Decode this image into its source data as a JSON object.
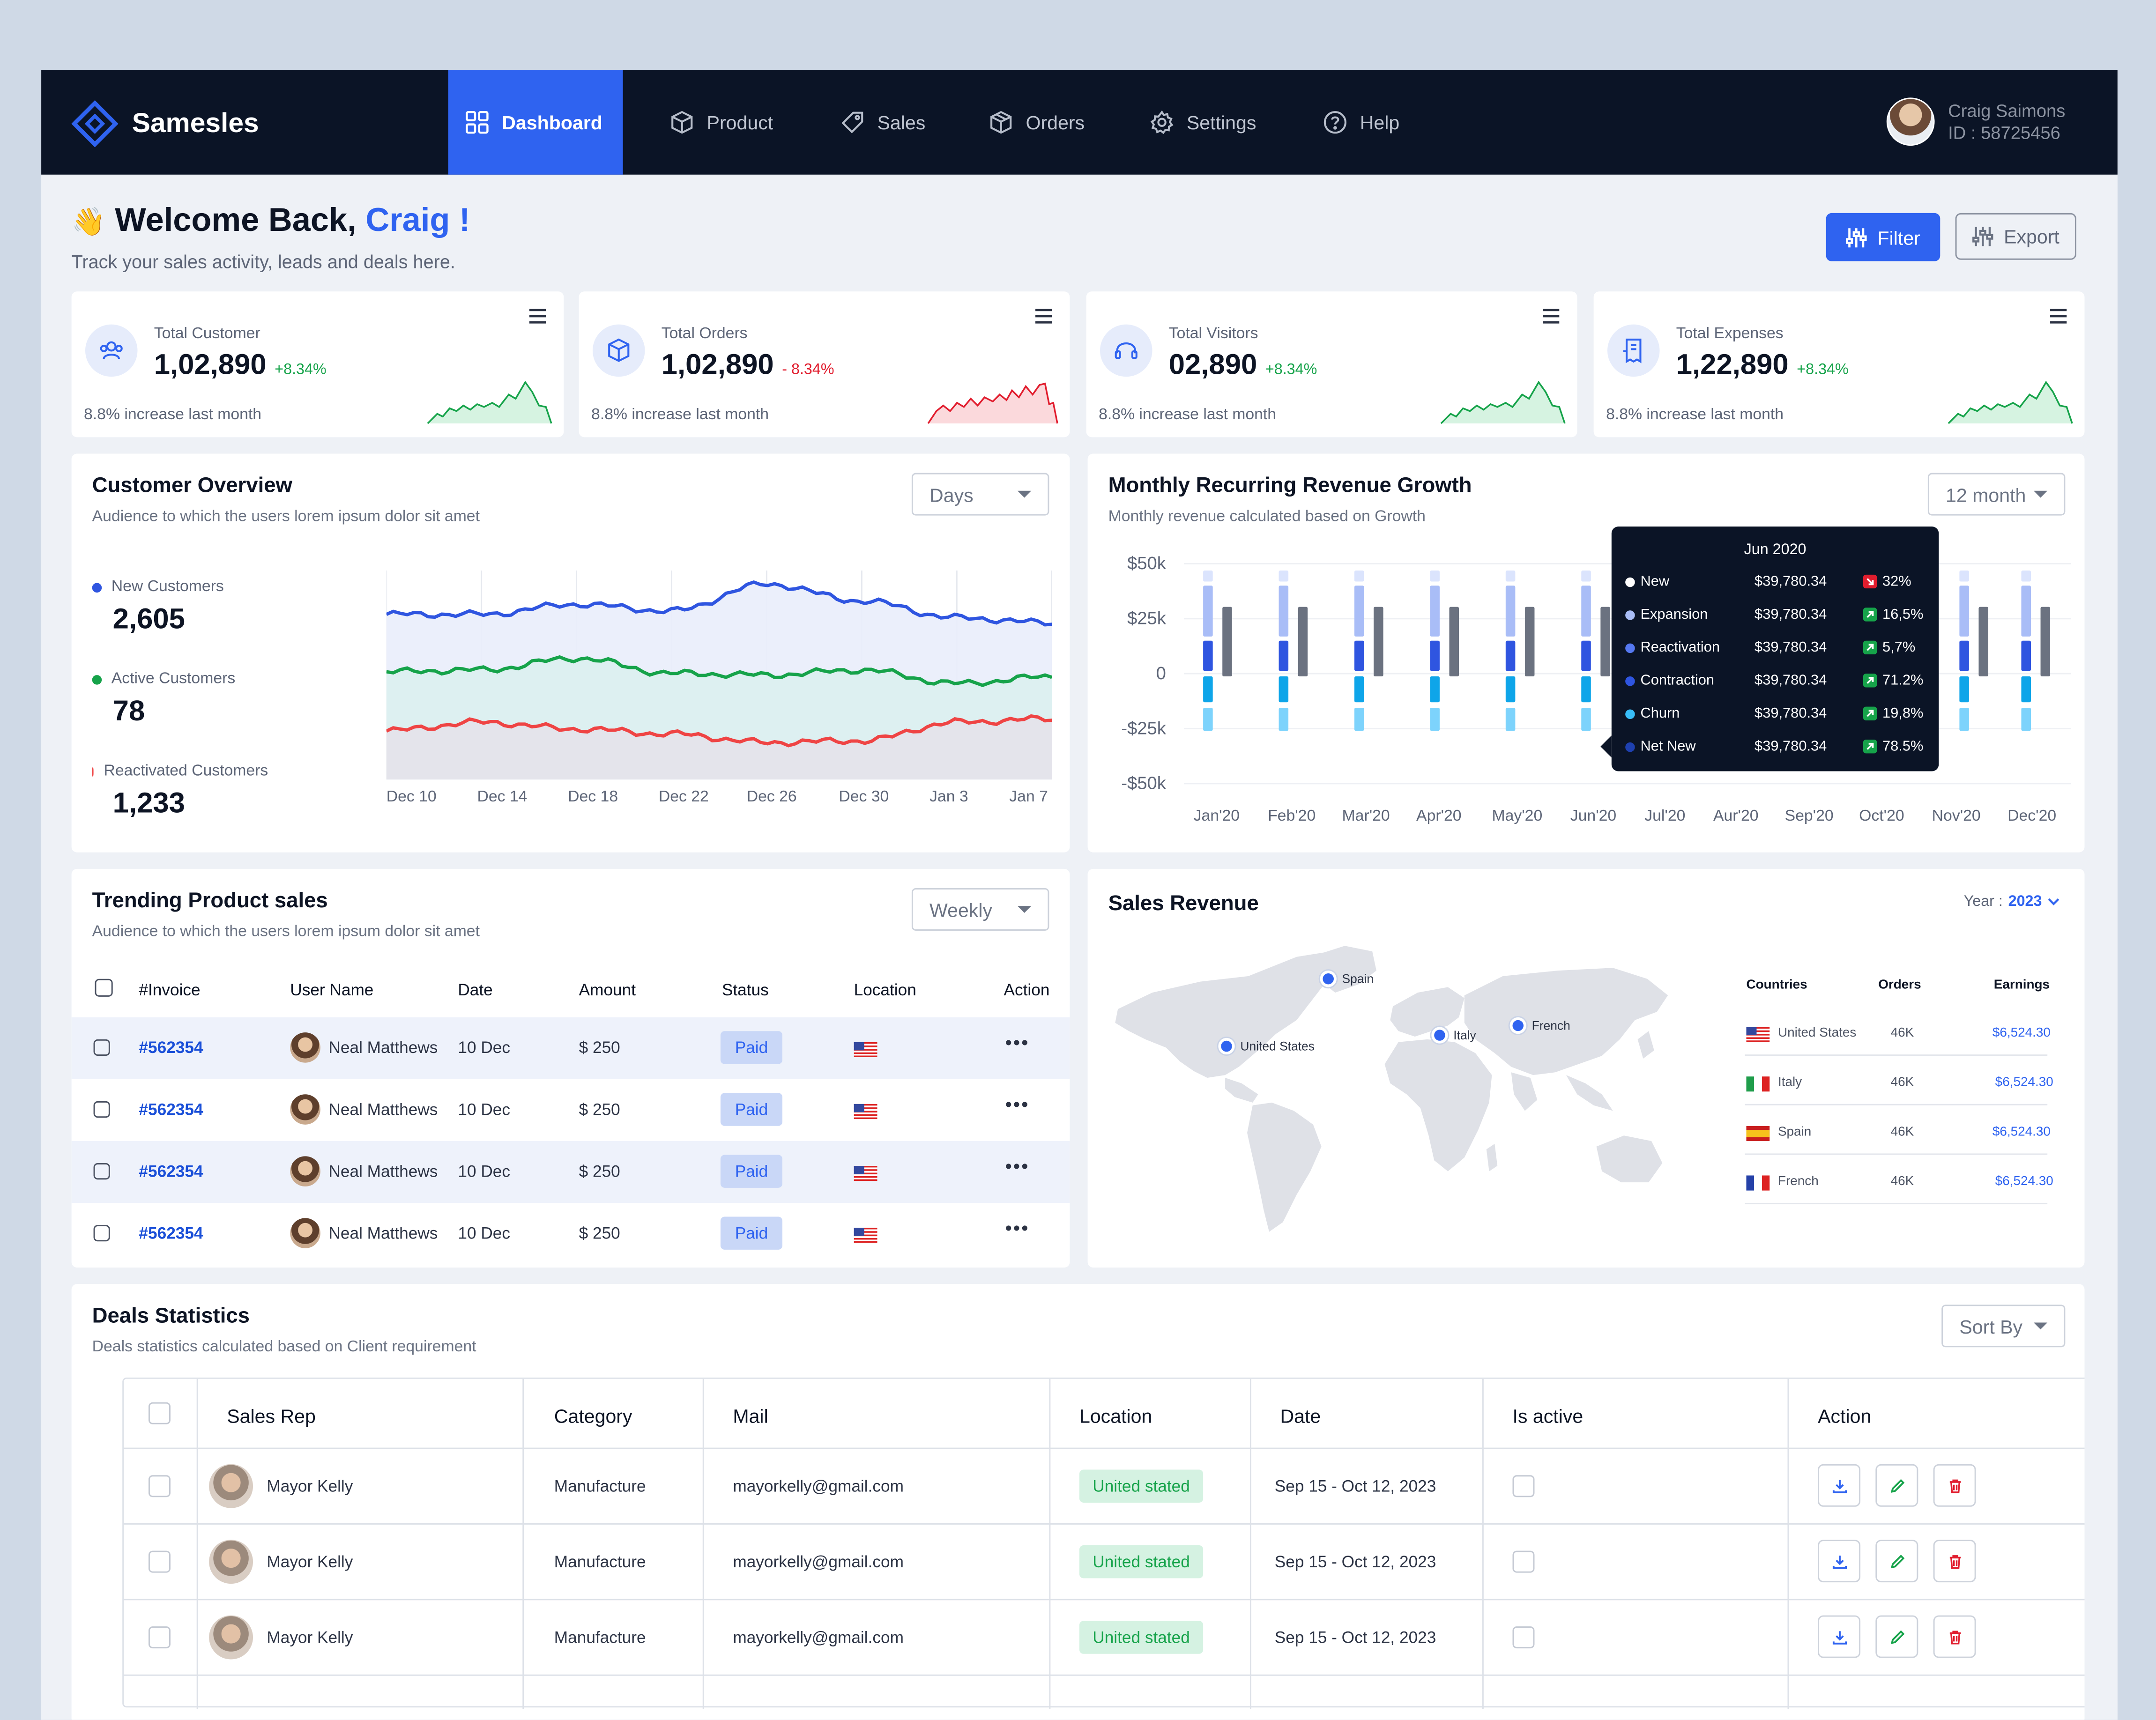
{
  "nav": {
    "brand": "Samesles",
    "items": [
      {
        "label": "Dashboard",
        "icon": "dashboard-icon",
        "active": true
      },
      {
        "label": "Product",
        "icon": "box-icon"
      },
      {
        "label": "Sales",
        "icon": "tag-icon"
      },
      {
        "label": "Orders",
        "icon": "package-icon"
      },
      {
        "label": "Settings",
        "icon": "gear-icon"
      },
      {
        "label": "Help",
        "icon": "help-icon"
      }
    ],
    "user": {
      "name": "Craig Saimons",
      "id": "ID : 58725456"
    }
  },
  "header": {
    "wave": "👋",
    "greeting": "Welcome Back,",
    "name": "Craig !",
    "subtitle": "Track your sales activity, leads and deals here.",
    "filter_label": "Filter",
    "export_label": "Export"
  },
  "stats": [
    {
      "label": "Total Customer",
      "value": "1,02,890",
      "delta": "+8.34%",
      "trend": "up",
      "footer": "8.8% increase last month",
      "icon": "users-icon",
      "color": "#16a34a"
    },
    {
      "label": "Total Orders",
      "value": "1,02,890",
      "delta": "- 8.34%",
      "trend": "down",
      "footer": "8.8% increase last month",
      "icon": "box-icon",
      "color": "#e11d2e"
    },
    {
      "label": "Total Visitors",
      "value": "02,890",
      "delta": "+8.34%",
      "trend": "up",
      "footer": "8.8% increase last month",
      "icon": "headset-icon",
      "color": "#16a34a"
    },
    {
      "label": "Total Expenses",
      "value": "1,22,890",
      "delta": "+8.34%",
      "trend": "up",
      "footer": "8.8% increase last month",
      "icon": "receipt-icon",
      "color": "#16a34a"
    }
  ],
  "customer_overview": {
    "title": "Customer Overview",
    "subtitle": "Audience to which the users lorem ipsum dolor sit amet",
    "select": "Days",
    "legend": [
      {
        "label": "New Customers",
        "value": "2,605",
        "color": "#2f55e0"
      },
      {
        "label": "Active Customers",
        "value": "78",
        "color": "#16a34a"
      },
      {
        "label": "Reactivated Customers",
        "value": "1,233",
        "color": "#ef4444"
      }
    ]
  },
  "mrr": {
    "title": "Monthly Recurring Revenue Growth",
    "subtitle": "Monthly revenue calculated based on Growth",
    "select": "12 month",
    "y_ticks": [
      "$50k",
      "$25k",
      "0",
      "-$25k",
      "-$50k"
    ],
    "tooltip": {
      "title": "Jun 2020",
      "rows": [
        {
          "name": "New",
          "value": "$39,780.34",
          "pct": "32%",
          "dir": "down",
          "dot": "#ffffff"
        },
        {
          "name": "Expansion",
          "value": "$39,780.34",
          "pct": "16,5%",
          "dir": "up",
          "dot": "#a9bdf7"
        },
        {
          "name": "Reactivation",
          "value": "$39,780.34",
          "pct": "5,7%",
          "dir": "up",
          "dot": "#5578f0"
        },
        {
          "name": "Contraction",
          "value": "$39,780.34",
          "pct": "71.2%",
          "dir": "up",
          "dot": "#2f55e0"
        },
        {
          "name": "Churn",
          "value": "$39,780.34",
          "pct": "19,8%",
          "dir": "up",
          "dot": "#38bdf8"
        },
        {
          "name": "Net New",
          "value": "$39,780.34",
          "pct": "78.5%",
          "dir": "up",
          "dot": "#1e40af"
        }
      ]
    }
  },
  "trending": {
    "title": "Trending Product sales",
    "subtitle": "Audience to which the users lorem ipsum dolor sit amet",
    "select": "Weekly",
    "columns": [
      "#Invoice",
      "User Name",
      "Date",
      "Amount",
      "Status",
      "Location",
      "Action"
    ],
    "rows": [
      {
        "invoice": "#562354",
        "user": "Neal Matthews",
        "date": "10 Dec",
        "amount": "$ 250",
        "status": "Paid"
      },
      {
        "invoice": "#562354",
        "user": "Neal Matthews",
        "date": "10 Dec",
        "amount": "$ 250",
        "status": "Paid"
      },
      {
        "invoice": "#562354",
        "user": "Neal Matthews",
        "date": "10 Dec",
        "amount": "$ 250",
        "status": "Paid"
      },
      {
        "invoice": "#562354",
        "user": "Neal Matthews",
        "date": "10 Dec",
        "amount": "$ 250",
        "status": "Paid"
      }
    ],
    "action_glyph": "•••"
  },
  "sales_revenue": {
    "title": "Sales Revenue",
    "year_label": "Year :",
    "year": "2023",
    "map_labels": [
      "Spain",
      "United States",
      "Italy",
      "French"
    ],
    "columns": [
      "Countries",
      "Orders",
      "Earnings"
    ],
    "rows": [
      {
        "country": "United States",
        "orders": "46K",
        "earnings": "$6,524.30",
        "flag": "us"
      },
      {
        "country": "Italy",
        "orders": "46K",
        "earnings": "$6,524.30",
        "flag": "it"
      },
      {
        "country": "Spain",
        "orders": "46K",
        "earnings": "$6,524.30",
        "flag": "es"
      },
      {
        "country": "French",
        "orders": "46K",
        "earnings": "$6,524.30",
        "flag": "fr"
      }
    ]
  },
  "deals": {
    "title": "Deals Statistics",
    "subtitle": "Deals statistics calculated based on Client requirement",
    "select": "Sort By",
    "columns": [
      "Sales Rep",
      "Category",
      "Mail",
      "Location",
      "Date",
      "Is active",
      "Action"
    ],
    "rows": [
      {
        "rep": "Mayor Kelly",
        "category": "Manufacture",
        "mail": "mayorkelly@gmail.com",
        "location": "United stated",
        "date": "Sep 15 - Oct 12, 2023"
      },
      {
        "rep": "Mayor Kelly",
        "category": "Manufacture",
        "mail": "mayorkelly@gmail.com",
        "location": "United stated",
        "date": "Sep 15 - Oct 12, 2023"
      },
      {
        "rep": "Mayor Kelly",
        "category": "Manufacture",
        "mail": "mayorkelly@gmail.com",
        "location": "United stated",
        "date": "Sep 15 - Oct 12, 2023"
      }
    ]
  },
  "chart_data": [
    {
      "type": "area",
      "title": "Customer Overview",
      "x": [
        "Dec 10",
        "Dec 14",
        "Dec 18",
        "Dec 22",
        "Dec 26",
        "Dec 30",
        "Jan 3",
        "Jan 7"
      ],
      "series": [
        {
          "name": "New Customers",
          "color": "#2f55e0",
          "values": [
            490,
            490,
            520,
            500,
            580,
            530,
            480,
            465
          ]
        },
        {
          "name": "Active Customers",
          "color": "#16a34a",
          "values": [
            320,
            325,
            360,
            315,
            310,
            325,
            285,
            305
          ]
        },
        {
          "name": "Reactivated Customers",
          "color": "#ef4444",
          "values": [
            145,
            170,
            150,
            135,
            110,
            115,
            170,
            180
          ]
        }
      ],
      "grid": true
    },
    {
      "type": "bar",
      "title": "Monthly Recurring Revenue Growth",
      "categories": [
        "Jan'20",
        "Feb'20",
        "Mar'20",
        "Apr'20",
        "May'20",
        "Jun'20",
        "Jul'20",
        "Aur'20",
        "Sep'20",
        "Oct'20",
        "Nov'20",
        "Dec'20"
      ],
      "ylim": [
        -50000,
        50000
      ],
      "y_ticks": [
        "$50k",
        "$25k",
        "0",
        "-$25k",
        "-$50k"
      ],
      "series": [
        {
          "name": "New",
          "color": "#dbe4fd",
          "values": [
            5000,
            5000,
            5000,
            5000,
            5000,
            5000,
            5000,
            5000,
            5000,
            5000,
            5000,
            5000
          ]
        },
        {
          "name": "Expansion",
          "color": "#a9bdf7",
          "values": [
            25000,
            25000,
            25000,
            25000,
            25000,
            25000,
            25000,
            25000,
            25000,
            25000,
            25000,
            25000
          ]
        },
        {
          "name": "Reactivation",
          "color": "#2f55e0",
          "values": [
            15000,
            15000,
            15000,
            15000,
            15000,
            15000,
            15000,
            15000,
            15000,
            15000,
            15000,
            15000
          ]
        },
        {
          "name": "Contraction",
          "color": "#0ea5e9",
          "values": [
            -13000,
            -13000,
            -13000,
            -13000,
            -13000,
            -13000,
            -13000,
            -13000,
            -13000,
            -13000,
            -13000,
            -13000
          ]
        },
        {
          "name": "Churn",
          "color": "#7dd3fc",
          "values": [
            -13000,
            -13000,
            -13000,
            -13000,
            -13000,
            -13000,
            -13000,
            -13000,
            -13000,
            -13000,
            -13000,
            -13000
          ]
        },
        {
          "name": "Net New",
          "color": "#6b7280",
          "values": [
            37000,
            37000,
            37000,
            37000,
            37000,
            37000,
            37000,
            37000,
            37000,
            37000,
            37000,
            37000
          ]
        }
      ],
      "grid": true
    }
  ]
}
